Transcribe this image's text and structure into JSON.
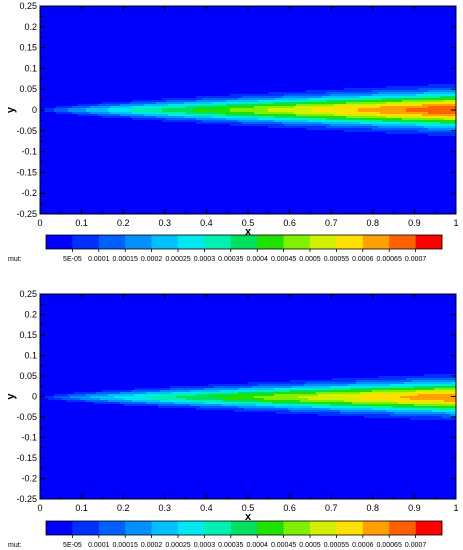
{
  "chart_data": [
    {
      "type": "heatmap",
      "title": "",
      "xlabel": "x",
      "ylabel": "y",
      "xlim": [
        0,
        1
      ],
      "ylim": [
        -0.25,
        0.25
      ],
      "x_ticks": [
        "0",
        "0.1",
        "0.2",
        "0.3",
        "0.4",
        "0.5",
        "0.6",
        "0.7",
        "0.8",
        "0.9",
        "1"
      ],
      "y_ticks": [
        "0.25",
        "0.2",
        "0.15",
        "0.1",
        "0.05",
        "0",
        "-0.05",
        "-0.1",
        "-0.15",
        "-0.2",
        "-0.25"
      ],
      "field": {
        "name": "mut",
        "peak_value": 0.0007,
        "peak_halfwidth_at_x1": 0.035,
        "center_y": 0
      },
      "colorbar": {
        "label": "mut:",
        "tick_labels": [
          "5E-05",
          "0.0001",
          "0.00015",
          "0.0002",
          "0.00025",
          "0.0003",
          "0.00035",
          "0.0004",
          "0.00045",
          "0.0005",
          "0.00055",
          "0.0006",
          "0.00065",
          "0.0007"
        ],
        "levels": [
          5e-05,
          0.0001,
          0.00015,
          0.0002,
          0.00025,
          0.0003,
          0.00035,
          0.0004,
          0.00045,
          0.0005,
          0.00055,
          0.0006,
          0.00065,
          0.0007
        ],
        "colors": [
          "#0000ff",
          "#0030ff",
          "#0060ff",
          "#0090ff",
          "#00c0ff",
          "#00e8f0",
          "#00f0b0",
          "#00e060",
          "#20e000",
          "#80f000",
          "#d0f000",
          "#ffe000",
          "#ffa000",
          "#ff6000",
          "#ff0000"
        ]
      }
    },
    {
      "type": "heatmap",
      "title": "",
      "xlabel": "x",
      "ylabel": "y",
      "xlim": [
        0,
        1
      ],
      "ylim": [
        -0.25,
        0.25
      ],
      "x_ticks": [
        "0",
        "0.1",
        "0.2",
        "0.3",
        "0.4",
        "0.5",
        "0.6",
        "0.7",
        "0.8",
        "0.9",
        "1"
      ],
      "y_ticks": [
        "0.25",
        "0.2",
        "0.15",
        "0.1",
        "0.05",
        "0",
        "-0.05",
        "-0.1",
        "-0.15",
        "-0.2",
        "-0.25"
      ],
      "field": {
        "name": "mut",
        "peak_value": 0.00065,
        "peak_halfwidth_at_x1": 0.032,
        "center_y": -0.002
      },
      "colorbar": {
        "label": "mut:",
        "tick_labels": [
          "5E-05",
          "0.0001",
          "0.00015",
          "0.0002",
          "0.00025",
          "0.0003",
          "0.00035",
          "0.0004",
          "0.00045",
          "0.0005",
          "0.00055",
          "0.0006",
          "0.00065",
          "0.0007"
        ],
        "levels": [
          5e-05,
          0.0001,
          0.00015,
          0.0002,
          0.00025,
          0.0003,
          0.00035,
          0.0004,
          0.00045,
          0.0005,
          0.00055,
          0.0006,
          0.00065,
          0.0007
        ],
        "colors": [
          "#0000ff",
          "#0030ff",
          "#0060ff",
          "#0090ff",
          "#00c0ff",
          "#00e8f0",
          "#00f0b0",
          "#00e060",
          "#20e000",
          "#80f000",
          "#d0f000",
          "#ffe000",
          "#ffa000",
          "#ff6000",
          "#ff0000"
        ]
      }
    }
  ]
}
